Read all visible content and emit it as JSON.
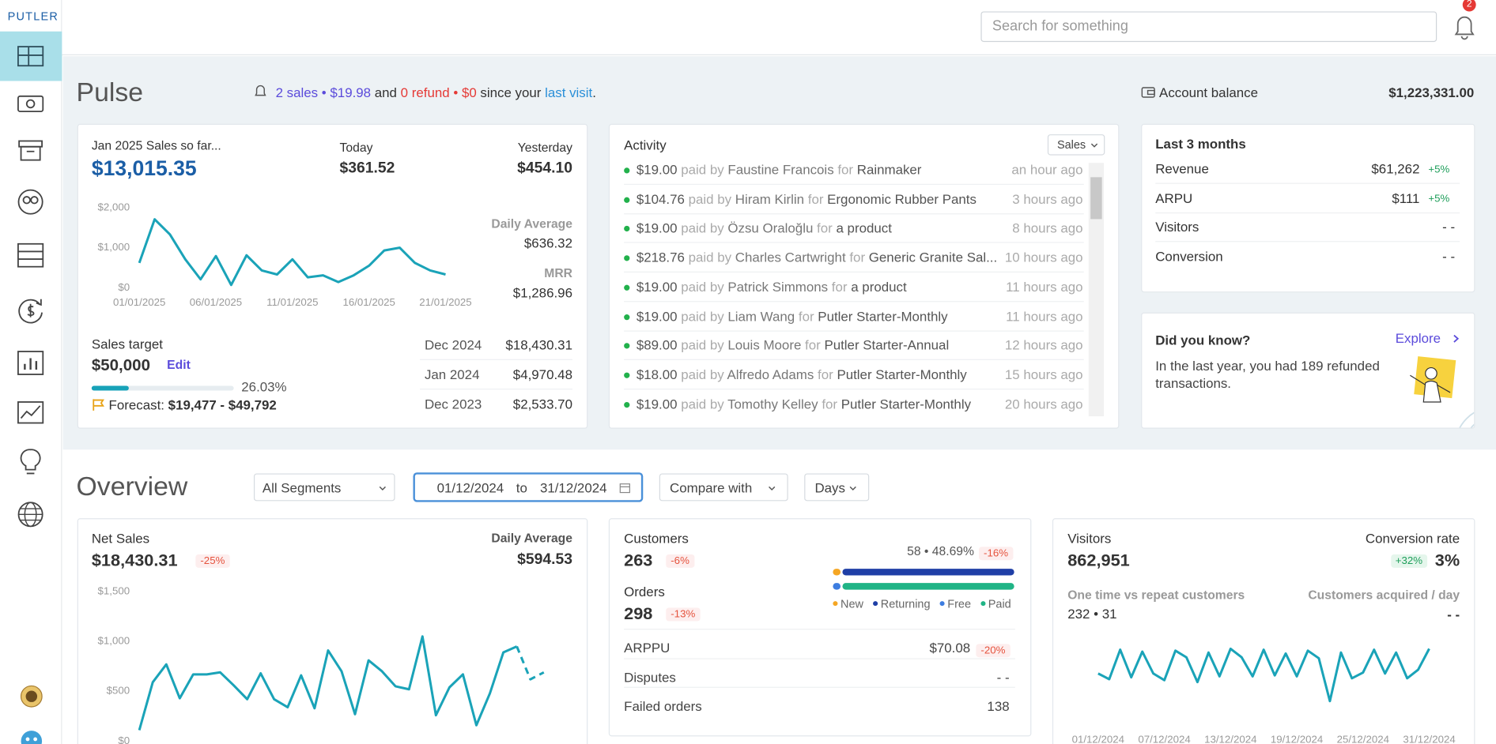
{
  "sidebar": {
    "brand": "PUTLER"
  },
  "topbar": {
    "search_placeholder": "Search for something",
    "notification_count": "2"
  },
  "pulse": {
    "title": "Pulse",
    "visit_summary": {
      "sales": "2 sales • $19.98",
      "and": "and",
      "refunds": "0 refund • $0",
      "since": "since your",
      "link": "last visit",
      "end": "."
    },
    "account_balance": {
      "label": "Account balance",
      "value": "$1,223,331.00"
    },
    "sales_card": {
      "label": "Jan 2025 Sales so far...",
      "total": "$13,015.35",
      "today_label": "Today",
      "today": "$361.52",
      "yesterday_label": "Yesterday",
      "yesterday": "$454.10",
      "daily_average_label": "Daily Average",
      "daily_average": "$636.32",
      "mrr_label": "MRR",
      "mrr": "$1,286.96",
      "target_label": "Sales target",
      "target": "$50,000",
      "edit": "Edit",
      "target_progress": 26.03,
      "target_progress_label": "26.03%",
      "forecast_label": "Forecast:",
      "forecast": "$19,477 - $49,792",
      "history": [
        {
          "month": "Dec 2024",
          "value": "$18,430.31"
        },
        {
          "month": "Jan 2024",
          "value": "$4,970.48"
        },
        {
          "month": "Dec 2023",
          "value": "$2,533.70"
        }
      ]
    },
    "activity": {
      "title": "Activity",
      "filter": "Sales",
      "items": [
        {
          "amount": "$19.00",
          "paid_by": "paid by",
          "customer": "Faustine Francois",
          "for": "for",
          "product": "Rainmaker",
          "time": "an hour ago"
        },
        {
          "amount": "$104.76",
          "paid_by": "paid by",
          "customer": "Hiram Kirlin",
          "for": "for",
          "product": "Ergonomic Rubber Pants",
          "time": "3 hours ago"
        },
        {
          "amount": "$19.00",
          "paid_by": "paid by",
          "customer": "Özsu Oraloğlu",
          "for": "for",
          "product": "a product",
          "time": "8 hours ago"
        },
        {
          "amount": "$218.76",
          "paid_by": "paid by",
          "customer": "Charles Cartwright",
          "for": "for",
          "product": "Generic Granite Sal...",
          "time": "10 hours ago"
        },
        {
          "amount": "$19.00",
          "paid_by": "paid by",
          "customer": "Patrick Simmons",
          "for": "for",
          "product": "a product",
          "time": "11 hours ago"
        },
        {
          "amount": "$19.00",
          "paid_by": "paid by",
          "customer": "Liam Wang",
          "for": "for",
          "product": "Putler Starter-Monthly",
          "time": "11 hours ago"
        },
        {
          "amount": "$89.00",
          "paid_by": "paid by",
          "customer": "Louis Moore",
          "for": "for",
          "product": "Putler Starter-Annual",
          "time": "12 hours ago"
        },
        {
          "amount": "$18.00",
          "paid_by": "paid by",
          "customer": "Alfredo Adams",
          "for": "for",
          "product": "Putler Starter-Monthly",
          "time": "15 hours ago"
        },
        {
          "amount": "$19.00",
          "paid_by": "paid by",
          "customer": "Tomothy Kelley",
          "for": "for",
          "product": "Putler Starter-Monthly",
          "time": "20 hours ago"
        }
      ]
    },
    "last_3_months": {
      "title": "Last 3 months",
      "items": [
        {
          "label": "Revenue",
          "value": "$61,262",
          "change": "+5%"
        },
        {
          "label": "ARPU",
          "value": "$111",
          "change": "+5%"
        },
        {
          "label": "Visitors",
          "value": "- -"
        },
        {
          "label": "Conversion",
          "value": "- -"
        }
      ]
    },
    "did_you_know": {
      "title": "Did you know?",
      "link": "Explore",
      "text": "In the last year, you had 189 refunded transactions."
    }
  },
  "overview": {
    "title": "Overview",
    "segment": "All Segments",
    "date_range": {
      "from": "01/12/2024",
      "to_word": "to",
      "to": "31/12/2024"
    },
    "compare": "Compare with",
    "granularity": "Days",
    "net_sales": {
      "label": "Net Sales",
      "value": "$18,430.31",
      "change": "-25%",
      "daily_average_label": "Daily Average",
      "daily_average": "$594.53"
    },
    "customers": {
      "label": "Customers",
      "value": "263",
      "change": "-6%",
      "orders_label": "Orders",
      "orders": "298",
      "orders_change": "-13%",
      "split": "58 • 48.69%",
      "split_change": "-16%",
      "bars": [
        {
          "segments": [
            {
              "name": "New",
              "color": "#f5a623",
              "value": 5
            },
            {
              "name": "Returning",
              "color": "#1f3fa6",
              "value": 95
            }
          ]
        },
        {
          "segments": [
            {
              "name": "Free",
              "color": "#3d7de0",
              "value": 5
            },
            {
              "name": "Paid",
              "color": "#20b486",
              "value": 95
            }
          ]
        }
      ],
      "metrics": [
        {
          "label": "ARPPU",
          "value": "$70.08",
          "change": "-20%"
        },
        {
          "label": "Disputes",
          "value": "- -"
        },
        {
          "label": "Failed orders",
          "value": "138"
        }
      ]
    },
    "visitors": {
      "label": "Visitors",
      "value": "862,951",
      "conversion_label": "Conversion rate",
      "conversion_change": "+32%",
      "conversion": "3%",
      "repeat_label": "One time vs repeat customers",
      "repeat": "232 • 31",
      "acquired_label": "Customers acquired / day",
      "acquired": "- -"
    }
  },
  "chart_data": [
    {
      "type": "line",
      "color": "#1aa3b8",
      "categories": [
        "01/01/2025",
        null,
        null,
        null,
        null,
        "06/01/2025",
        null,
        null,
        null,
        null,
        "11/01/2025",
        null,
        null,
        null,
        null,
        "16/01/2025",
        null,
        null,
        null,
        null,
        "21/01/2025"
      ],
      "values": [
        620,
        1710,
        1330,
        710,
        210,
        790,
        70,
        810,
        430,
        330,
        710,
        260,
        310,
        140,
        310,
        550,
        930,
        1000,
        620,
        430,
        330
      ],
      "ylim": [
        0,
        2000
      ],
      "yticks": [
        {
          "value": 0,
          "label": "$0"
        },
        {
          "value": 1000,
          "label": "$1,000"
        },
        {
          "value": 2000,
          "label": "$2,000"
        }
      ]
    },
    {
      "type": "line",
      "color": "#1aa3b8",
      "values": [
        110,
        590,
        770,
        430,
        670,
        670,
        690,
        560,
        420,
        680,
        420,
        340,
        660,
        330,
        910,
        700,
        270,
        810,
        700,
        550,
        520,
        1050,
        260,
        540,
        670,
        160,
        480,
        890,
        950,
        null,
        null
      ],
      "projection": [
        null,
        null,
        null,
        null,
        null,
        null,
        null,
        null,
        null,
        null,
        null,
        null,
        null,
        null,
        null,
        null,
        null,
        null,
        null,
        null,
        null,
        null,
        null,
        null,
        null,
        null,
        null,
        null,
        950,
        620,
        690
      ],
      "ylim": [
        0,
        1500
      ],
      "yticks": [
        {
          "value": 0,
          "label": "$0"
        },
        {
          "value": 500,
          "label": "$500"
        },
        {
          "value": 1000,
          "label": "$1,000"
        },
        {
          "value": 1500,
          "label": "$1,500"
        }
      ]
    },
    {
      "type": "line",
      "color": "#1aa3b8",
      "categories": [
        "01/12/2024",
        null,
        null,
        null,
        null,
        null,
        "07/12/2024",
        null,
        null,
        null,
        null,
        null,
        "13/12/2024",
        null,
        null,
        null,
        null,
        null,
        "19/12/2024",
        null,
        null,
        null,
        null,
        null,
        "25/12/2024",
        null,
        null,
        null,
        null,
        null,
        "31/12/2024"
      ],
      "values": [
        23850,
        21150,
        35100,
        22050,
        34200,
        23850,
        20700,
        34650,
        31500,
        19800,
        33750,
        22500,
        35550,
        31500,
        22500,
        35100,
        22950,
        33300,
        22500,
        34650,
        31050,
        10800,
        33750,
        21600,
        24300,
        35100,
        23850,
        33750,
        21600,
        25650,
        35550
      ],
      "ylim": [
        0,
        45000
      ]
    }
  ]
}
